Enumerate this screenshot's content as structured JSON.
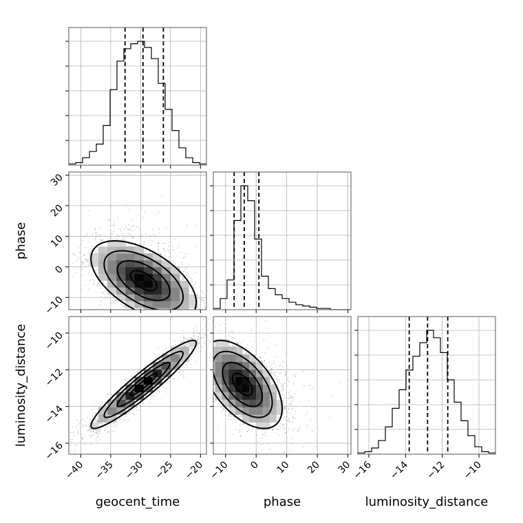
{
  "chart_data": {
    "type": "corner",
    "parameters": [
      "geocent_time",
      "phase",
      "luminosity_distance"
    ],
    "axis_labels": {
      "x": [
        "geocent_time",
        "phase",
        "luminosity_distance"
      ],
      "y": [
        "",
        "phase",
        "luminosity_distance"
      ]
    },
    "ranges": {
      "geocent_time": [
        -42,
        -19
      ],
      "phase": [
        -14,
        31
      ],
      "luminosity_distance": [
        -16.6,
        -9.1
      ]
    },
    "ticks": {
      "geocent_time": [
        -40,
        -35,
        -30,
        -25,
        -20
      ],
      "phase": [
        -10,
        0,
        10,
        20,
        30
      ],
      "luminosity_distance": [
        -16,
        -14,
        -12,
        -10
      ]
    },
    "tick_labels": {
      "geocent_time": [
        "−40",
        "−35",
        "−30",
        "−25",
        "−20"
      ],
      "phase": [
        "−10",
        "0",
        "10",
        "20",
        "30"
      ],
      "luminosity_distance": [
        "−16",
        "−14",
        "−12",
        "−10"
      ],
      "phase_y": [
        "−10",
        "0",
        "10",
        "20",
        "30"
      ],
      "luminosity_distance_y": [
        "−16",
        "−14",
        "−12",
        "−10"
      ]
    },
    "histograms": {
      "geocent_time": {
        "edges": [
          -42,
          -40.85,
          -39.7,
          -38.55,
          -37.4,
          -36.25,
          -35.1,
          -33.95,
          -32.8,
          -31.65,
          -30.5,
          -29.35,
          -28.2,
          -27.05,
          -25.9,
          -24.75,
          -23.6,
          -22.45,
          -21.3,
          -20.15,
          -19
        ],
        "counts": [
          0.01,
          0.02,
          0.06,
          0.11,
          0.17,
          0.32,
          0.61,
          0.84,
          0.94,
          0.98,
          1.0,
          0.95,
          0.86,
          0.66,
          0.45,
          0.28,
          0.14,
          0.06,
          0.02,
          0.01
        ],
        "quantiles": [
          -32.6,
          -29.6,
          -26.2
        ]
      },
      "phase": {
        "edges": [
          -14,
          -11.75,
          -9.5,
          -7.25,
          -5,
          -2.75,
          -0.5,
          1.75,
          4,
          6.25,
          8.5,
          10.75,
          13,
          15.25,
          17.5,
          19.75,
          22,
          24.25,
          26.5,
          28.75,
          31
        ],
        "counts": [
          0.01,
          0.09,
          0.24,
          0.72,
          1.0,
          0.88,
          0.57,
          0.27,
          0.17,
          0.12,
          0.09,
          0.06,
          0.04,
          0.03,
          0.02,
          0.01,
          0.01,
          0.0,
          0.0,
          0.0
        ],
        "quantiles": [
          -7.2,
          -3.9,
          0.9
        ]
      },
      "luminosity_distance": {
        "edges": [
          -16.6,
          -16.225,
          -15.85,
          -15.475,
          -15.1,
          -14.725,
          -14.35,
          -13.975,
          -13.6,
          -13.225,
          -12.85,
          -12.475,
          -12.1,
          -11.725,
          -11.35,
          -10.975,
          -10.6,
          -10.225,
          -9.85,
          -9.475,
          -9.1
        ],
        "counts": [
          0.01,
          0.02,
          0.05,
          0.11,
          0.22,
          0.37,
          0.52,
          0.68,
          0.79,
          0.9,
          1.0,
          0.94,
          0.82,
          0.6,
          0.42,
          0.27,
          0.15,
          0.06,
          0.02,
          0.01
        ],
        "quantiles": [
          -13.8,
          -12.8,
          -11.7
        ]
      }
    },
    "joint": {
      "phase_vs_geocent_time": {
        "mean": [
          -29.5,
          -4.5
        ],
        "sd": [
          4.4,
          6.5
        ],
        "rho": -0.55,
        "contour_sigma": [
          0.5,
          1.0,
          1.5,
          2.0
        ]
      },
      "luminosity_distance_vs_geocent_time": {
        "mean": [
          -29.5,
          -12.8
        ],
        "sd": [
          4.4,
          1.2
        ],
        "rho": 0.94,
        "contour_sigma": [
          0.5,
          1.0,
          1.5,
          2.0
        ]
      },
      "luminosity_distance_vs_phase": {
        "mean": [
          -4.5,
          -12.8
        ],
        "sd": [
          6.5,
          1.2
        ],
        "rho": -0.55,
        "contour_sigma": [
          0.5,
          1.0,
          1.5,
          2.0
        ]
      }
    }
  }
}
